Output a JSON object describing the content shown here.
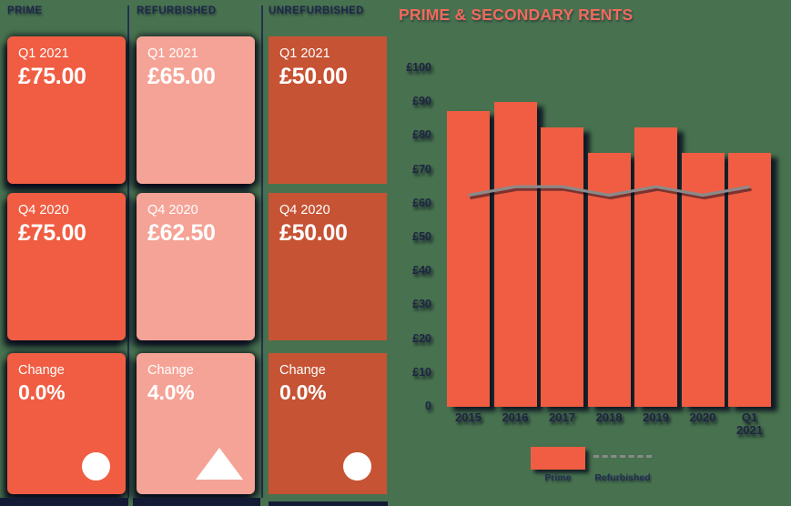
{
  "panel": {
    "columns": [
      {
        "header": "PRIME",
        "card_color": "#F05D42",
        "cards": [
          {
            "label": "Q1 2021",
            "value": "£75.00"
          },
          {
            "label": "Q4 2020",
            "value": "£75.00"
          },
          {
            "label": "Change",
            "value": "0.0%",
            "icon": "circle"
          }
        ]
      },
      {
        "header": "REFURBISHED",
        "card_color": "#F5A396",
        "cards": [
          {
            "label": "Q1 2021",
            "value": "£65.00"
          },
          {
            "label": "Q4 2020",
            "value": "£62.50"
          },
          {
            "label": "Change",
            "value": "4.0%",
            "icon": "triangle-up"
          }
        ]
      },
      {
        "header": "UNREFURBISHED",
        "card_color": "#C65334",
        "cards": [
          {
            "label": "Q1 2021",
            "value": "£50.00"
          },
          {
            "label": "Q4 2020",
            "value": "£50.00"
          },
          {
            "label": "Change",
            "value": "0.0%",
            "icon": "circle"
          }
        ]
      }
    ]
  },
  "chart_data": {
    "type": "bar",
    "title": "PRIME & SECONDARY RENTS",
    "categories": [
      "2015",
      "2016",
      "2017",
      "2018",
      "2019",
      "2020",
      "Q1 2021"
    ],
    "series": [
      {
        "name": "Prime",
        "type": "bar",
        "values": [
          87.5,
          90,
          82.5,
          75,
          82.5,
          75,
          75
        ],
        "color": "#F05D42"
      },
      {
        "name": "Refurbished",
        "type": "line",
        "values": [
          62.5,
          65,
          65,
          62.5,
          65,
          62.5,
          65
        ],
        "color": "#8A8A8A"
      }
    ],
    "ylim": [
      0,
      100
    ],
    "y_tick_labels": [
      "£100",
      "£90",
      "£80",
      "£70",
      "£60",
      "£50",
      "£40",
      "£30",
      "£20",
      "£10",
      "0"
    ],
    "grid": false,
    "legend_position": "bottom"
  },
  "colors": {
    "background": "#48724F",
    "prime": "#F05D42",
    "refurbished": "#F5A396",
    "unrefurbished": "#C65334",
    "navy_text": "#1E2749",
    "title": "#F2695C",
    "line_gray": "#8A8A8A"
  }
}
